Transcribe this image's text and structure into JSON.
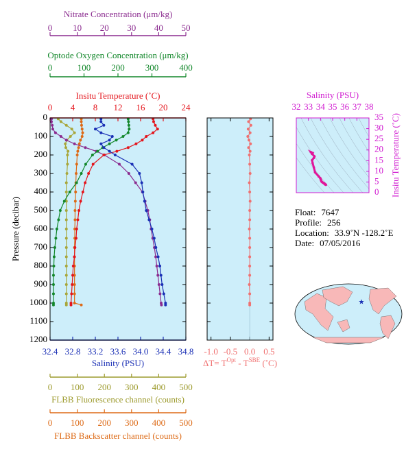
{
  "chart_data": [
    {
      "type": "profile",
      "ylabel": "Pressure (decibar)",
      "ylim": [
        0,
        1200
      ],
      "yticks": [
        0,
        100,
        200,
        300,
        400,
        500,
        600,
        700,
        800,
        900,
        1000,
        1100,
        1200
      ],
      "y": [
        5,
        20,
        40,
        60,
        80,
        100,
        120,
        140,
        160,
        180,
        200,
        250,
        300,
        350,
        400,
        450,
        500,
        550,
        600,
        650,
        700,
        750,
        800,
        850,
        900,
        950,
        1000,
        1010
      ],
      "axes": [
        {
          "title": "Nitrate Concentration (μm/kg)",
          "color": "#8b2c8f",
          "lim": [
            0,
            50
          ],
          "ticks": [
            0,
            10,
            20,
            30,
            40,
            50
          ]
        },
        {
          "title": "Optode Oxygen Concentration (μm/kg)",
          "color": "#12872a",
          "lim": [
            0,
            400
          ],
          "ticks": [
            0,
            100,
            200,
            300,
            400
          ]
        },
        {
          "title": "Insitu Temperature (˚C)",
          "color": "#e4141b",
          "lim": [
            0,
            24
          ],
          "ticks": [
            0,
            4,
            8,
            12,
            16,
            20,
            24
          ]
        },
        {
          "title": "Salinity (PSU)",
          "color": "#1a2fb5",
          "lim": [
            32.4,
            34.8
          ],
          "ticks": [
            32.4,
            32.8,
            33.2,
            33.6,
            {
              "value": 34,
              "label": "34.0"
            },
            34.4,
            34.8
          ]
        },
        {
          "title": "FLBB Fluorescence channel (counts)",
          "color": "#9c9a2c",
          "lim": [
            0,
            500
          ],
          "ticks": [
            0,
            100,
            200,
            300,
            400,
            500
          ]
        },
        {
          "title": "FLBB Backscatter channel (counts)",
          "color": "#dd6a16",
          "lim": [
            0,
            500
          ],
          "ticks": [
            0,
            100,
            200,
            300,
            400,
            500
          ]
        }
      ],
      "series": [
        {
          "axis": 4,
          "color": "#a8a63a",
          "values": [
            30,
            40,
            60,
            80,
            90,
            75,
            62,
            56,
            58,
            66,
            64,
            64,
            62,
            60,
            60,
            60,
            60,
            60,
            60,
            60,
            60,
            60,
            60,
            60,
            60,
            60,
            60,
            60
          ]
        },
        {
          "axis": 5,
          "color": "#dd6a16",
          "values": [
            115,
            115,
            116,
            118,
            120,
            118,
            112,
            108,
            105,
            102,
            100,
            98,
            96,
            95,
            94,
            93,
            92,
            92,
            91,
            91,
            90,
            90,
            90,
            90,
            90,
            90,
            90,
            115
          ]
        },
        {
          "axis": 0,
          "color": "#8b2c8f",
          "values": [
            0.5,
            0.5,
            0.8,
            1,
            2,
            4,
            6,
            9,
            13,
            17,
            20,
            25.5,
            29,
            31.5,
            34,
            35,
            36,
            36.7,
            37.2,
            37.8,
            38.4,
            38.9,
            39.3,
            39.7,
            40.1,
            40.5,
            40.9,
            41
          ]
        },
        {
          "axis": 1,
          "color": "#12872a",
          "values": [
            230,
            231,
            232,
            233,
            230,
            215,
            195,
            175,
            155,
            140,
            125,
            105,
            92,
            78,
            58,
            42,
            30,
            25,
            20,
            17,
            14,
            12,
            11,
            10,
            10,
            10,
            10,
            10
          ]
        },
        {
          "axis": 2,
          "color": "#e4141b",
          "values": [
            18.2,
            18.3,
            18.6,
            19.0,
            18.2,
            17.0,
            16.3,
            15.2,
            13.8,
            11.8,
            9.5,
            7.6,
            6.8,
            6.2,
            5.8,
            5.4,
            5.1,
            4.9,
            4.7,
            4.6,
            4.4,
            4.3,
            4.1,
            4.0,
            3.9,
            3.8,
            3.7,
            3.7
          ]
        },
        {
          "axis": 3,
          "color": "#1a2fb5",
          "values": [
            33.3,
            33.3,
            33.35,
            33.2,
            33.3,
            33.5,
            33.45,
            33.3,
            33.35,
            33.45,
            33.55,
            33.85,
            33.98,
            34.02,
            34.04,
            34.07,
            34.1,
            34.15,
            34.2,
            34.24,
            34.27,
            34.31,
            34.34,
            34.36,
            34.38,
            34.41,
            34.44,
            34.44
          ]
        }
      ]
    },
    {
      "type": "delta",
      "xlabel_parts": [
        "ΔT= T",
        "Opt",
        " - T",
        "SBE",
        " (˚C)"
      ],
      "color": "#f07070",
      "xlim": [
        -1.1,
        0.6
      ],
      "xticks": [
        {
          "value": -1,
          "label": "-1.0"
        },
        -0.5,
        {
          "value": 0,
          "label": "0.0"
        },
        0.5
      ],
      "ylim": [
        0,
        1200
      ],
      "yticks": [
        0,
        100,
        200,
        300,
        400,
        500,
        600,
        700,
        800,
        900,
        1000,
        1100,
        1200
      ],
      "y": [
        5,
        20,
        40,
        60,
        80,
        100,
        120,
        140,
        160,
        180,
        200,
        250,
        300,
        350,
        400,
        450,
        500,
        550,
        600,
        650,
        700,
        750,
        800,
        850,
        900,
        950,
        1000,
        1010
      ],
      "values": [
        0.02,
        -0.03,
        0.03,
        -0.04,
        0.01,
        -0.05,
        -0.02,
        0.02,
        -0.03,
        0.01,
        -0.01,
        0.0,
        0.01,
        -0.01,
        0.0,
        0.01,
        0.0,
        0.0,
        -0.01,
        0.0,
        0.0,
        0.0,
        0.0,
        0.0,
        -0.01,
        0.0,
        0.0,
        0.0
      ]
    },
    {
      "type": "ts",
      "xlabel": "Salinity (PSU)",
      "ylabel": "Insitu Temperature (˚C)",
      "color": "#e0169a",
      "axis_color": "#d01ad0",
      "xlim": [
        32,
        38
      ],
      "xticks": [
        32,
        33,
        34,
        35,
        36,
        37,
        38
      ],
      "ylim": [
        0,
        35
      ],
      "yticks": [
        0,
        5,
        10,
        15,
        20,
        25,
        30,
        35
      ],
      "x": [
        33.3,
        33.3,
        33.35,
        33.2,
        33.3,
        33.5,
        33.45,
        33.3,
        33.35,
        33.45,
        33.55,
        33.85,
        33.98,
        34.02,
        34.04,
        34.07,
        34.1,
        34.15,
        34.2,
        34.24,
        34.27,
        34.31,
        34.34,
        34.36,
        34.38,
        34.41,
        34.44,
        34.44
      ],
      "values": [
        18.2,
        18.3,
        18.6,
        19.0,
        18.2,
        17.0,
        16.3,
        15.2,
        13.8,
        11.8,
        9.5,
        7.6,
        6.8,
        6.2,
        5.8,
        5.4,
        5.1,
        4.9,
        4.7,
        4.6,
        4.4,
        4.3,
        4.1,
        4.0,
        3.9,
        3.8,
        3.7,
        3.7
      ]
    }
  ],
  "info": [
    {
      "label": "Float:",
      "value": "7647"
    },
    {
      "label": "Profile:",
      "value": "256"
    },
    {
      "label": "Location:",
      "value": "33.9˚N  -128.2˚E"
    },
    {
      "label": "Date:",
      "value": "07/05/2016"
    }
  ]
}
